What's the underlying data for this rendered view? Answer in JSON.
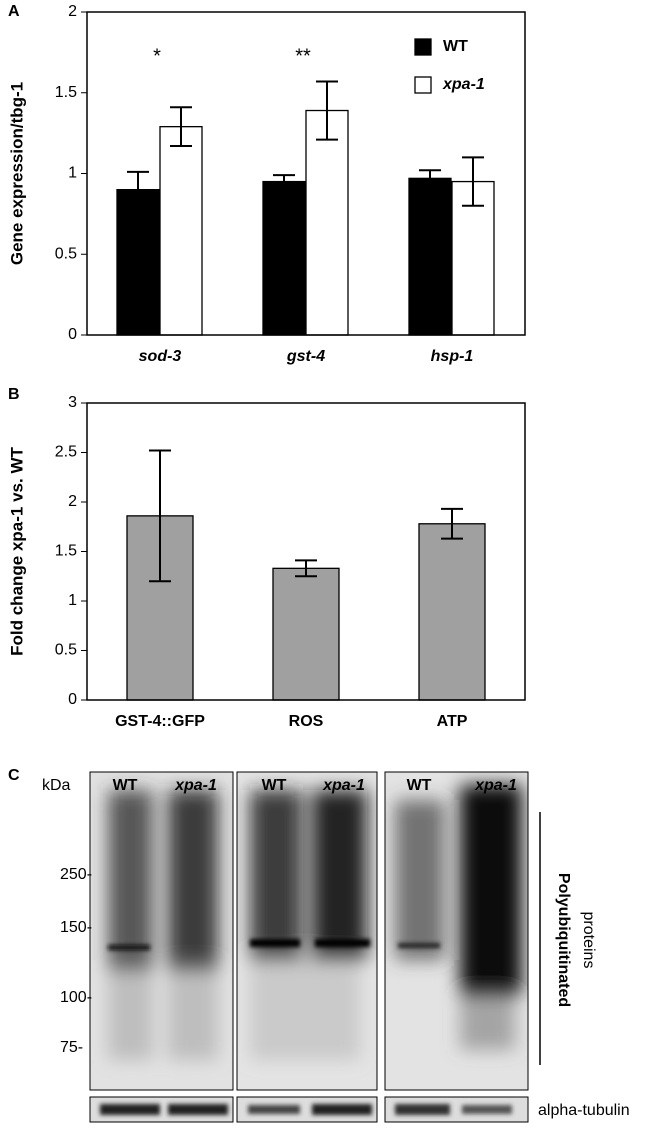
{
  "chart_data": [
    {
      "type": "bar",
      "ylabel": "Gene expression/tbg-1",
      "categories": [
        "sod-3",
        "gst-4",
        "hsp-1"
      ],
      "series": [
        {
          "name": "WT",
          "color": "#000000",
          "values": [
            0.9,
            0.95,
            0.97
          ],
          "errors": [
            0.11,
            0.04,
            0.05
          ]
        },
        {
          "name": "xpa-1",
          "color": "#ffffff",
          "values": [
            1.29,
            1.39,
            0.95
          ],
          "errors": [
            0.12,
            0.18,
            0.15
          ]
        }
      ],
      "annotations": [
        "*",
        "**",
        null
      ],
      "ylim": [
        0,
        2
      ],
      "yticks": [
        0,
        0.5,
        1,
        1.5,
        2
      ],
      "legend": "upper right",
      "italic_categories": true
    },
    {
      "type": "bar",
      "ylabel": "Fold change xpa-1 vs. WT",
      "categories": [
        "GST-4::GFP",
        "ROS",
        "ATP"
      ],
      "series": [
        {
          "color": "#a0a0a0",
          "values": [
            1.86,
            1.33,
            1.78
          ],
          "errors": [
            0.66,
            0.08,
            0.15
          ]
        }
      ],
      "ylim": [
        0,
        3
      ],
      "yticks": [
        0,
        0.5,
        1,
        1.5,
        2,
        2.5,
        3
      ],
      "italic_categories": false
    }
  ],
  "panel_labels": [
    "A",
    "B",
    "C"
  ],
  "blot": {
    "unit": "kDa",
    "lanes": [
      "WT",
      "xpa-1",
      "WT",
      "xpa-1",
      "WT",
      "xpa-1"
    ],
    "markers": [
      "250-",
      "150-",
      "100-",
      "75-"
    ],
    "target_label": [
      "Polyubiquitinated",
      "proteins"
    ],
    "loading_control": "alpha-tubulin"
  }
}
